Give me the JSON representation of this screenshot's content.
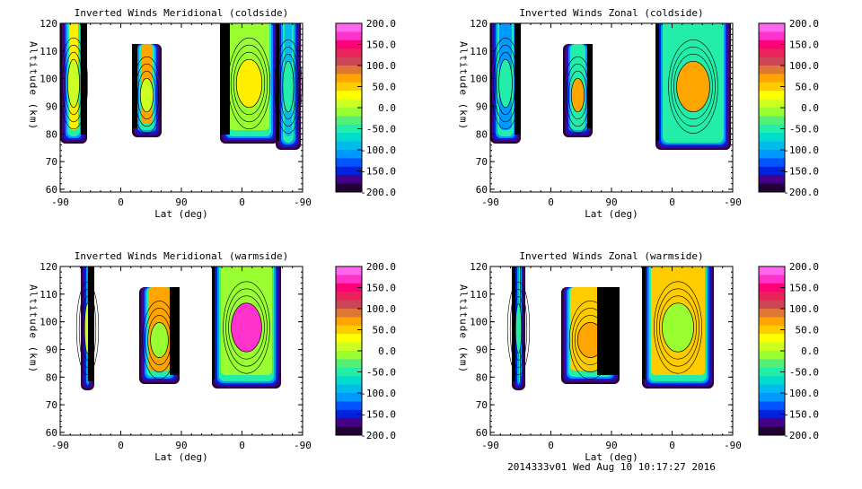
{
  "colorbar": {
    "labels": [
      "200.0",
      "150.0",
      "100.0",
      "50.0",
      "0.0",
      "-50.0",
      "-100.0",
      "-150.0",
      "-200.0"
    ],
    "range": [
      -200,
      200
    ],
    "colors": [
      "#ff66ee",
      "#ff33cc",
      "#ff0077",
      "#e8245a",
      "#cc4455",
      "#dd7733",
      "#ffa500",
      "#ffcc00",
      "#ffff00",
      "#ccff22",
      "#99ff33",
      "#55ee77",
      "#22eeaa",
      "#00ddcc",
      "#00bbee",
      "#0099ff",
      "#0055ff",
      "#0022dd",
      "#440088",
      "#220033"
    ]
  },
  "footer": "2014333v01 Wed Aug 10 10:17:27 2016",
  "chart_data": [
    {
      "type": "heatmap",
      "title": "Inverted Winds Meridional (coldside)",
      "xlabel": "Lat (deg)",
      "ylabel": "Altitude (km)",
      "xticks": [
        "-90",
        "0",
        "90",
        "0",
        "-90"
      ],
      "yticks": [
        "60",
        "70",
        "80",
        "90",
        "100",
        "110",
        "120"
      ],
      "ylim": [
        59,
        120
      ],
      "zlim": [
        -200,
        200
      ]
    },
    {
      "type": "heatmap",
      "title": "Inverted Winds Zonal (coldside)",
      "xlabel": "Lat (deg)",
      "ylabel": "Altitude (km)",
      "xticks": [
        "-90",
        "0",
        "90",
        "0",
        "-90"
      ],
      "yticks": [
        "60",
        "70",
        "80",
        "90",
        "100",
        "110",
        "120"
      ],
      "ylim": [
        59,
        120
      ],
      "zlim": [
        -200,
        200
      ]
    },
    {
      "type": "heatmap",
      "title": "Inverted Winds Meridional (warmside)",
      "xlabel": "Lat (deg)",
      "ylabel": "Altitude (km)",
      "xticks": [
        "-90",
        "0",
        "90",
        "0",
        "-90"
      ],
      "yticks": [
        "60",
        "70",
        "80",
        "90",
        "100",
        "110",
        "120"
      ],
      "ylim": [
        59,
        120
      ],
      "zlim": [
        -200,
        200
      ]
    },
    {
      "type": "heatmap",
      "title": "Inverted Winds Zonal (warmside)",
      "xlabel": "Lat (deg)",
      "ylabel": "Altitude (km)",
      "xticks": [
        "-90",
        "0",
        "90",
        "0",
        "-90"
      ],
      "yticks": [
        "60",
        "70",
        "80",
        "90",
        "100",
        "110",
        "120"
      ],
      "ylim": [
        59,
        120
      ],
      "zlim": [
        -200,
        200
      ]
    }
  ]
}
